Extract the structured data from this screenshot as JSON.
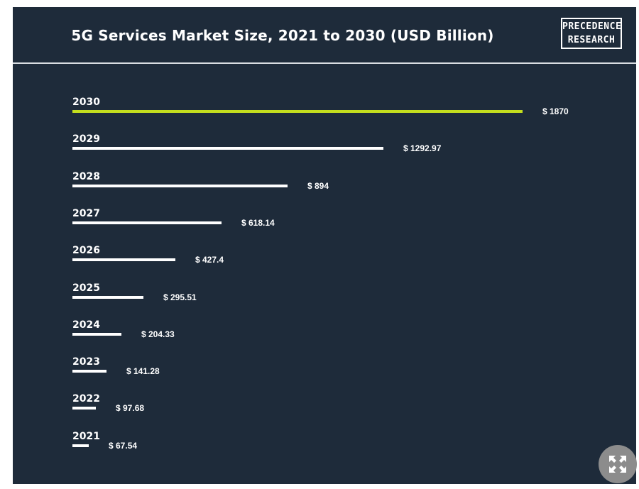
{
  "title": "5G Services Market Size, 2021 to 2030 (USD Billion)",
  "logo": {
    "line1": "PRECEDENCE",
    "line2": "RESEARCH"
  },
  "colors": {
    "background": "#1e2b3a",
    "bar": "#ffffff",
    "highlight": "#c4de1e"
  },
  "chart_data": {
    "type": "bar",
    "orientation": "horizontal",
    "title": "5G Services Market Size, 2021 to 2030 (USD Billion)",
    "categories": [
      "2030",
      "2029",
      "2028",
      "2027",
      "2026",
      "2025",
      "2024",
      "2023",
      "2022",
      "2021"
    ],
    "values": [
      1870,
      1292.97,
      894,
      618.14,
      427.4,
      295.51,
      204.33,
      141.28,
      97.68,
      67.54
    ],
    "labels": [
      "$ 1870",
      "$ 1292.97",
      "$ 894",
      "$ 618.14",
      "$ 427.4",
      "$ 295.51",
      "$ 204.33",
      "$ 141.28",
      "$ 97.68",
      "$ 67.54"
    ],
    "highlight": "2030",
    "unit": "USD Billion",
    "xlabel": "",
    "ylabel": ""
  },
  "expand_icon": "expand-icon"
}
